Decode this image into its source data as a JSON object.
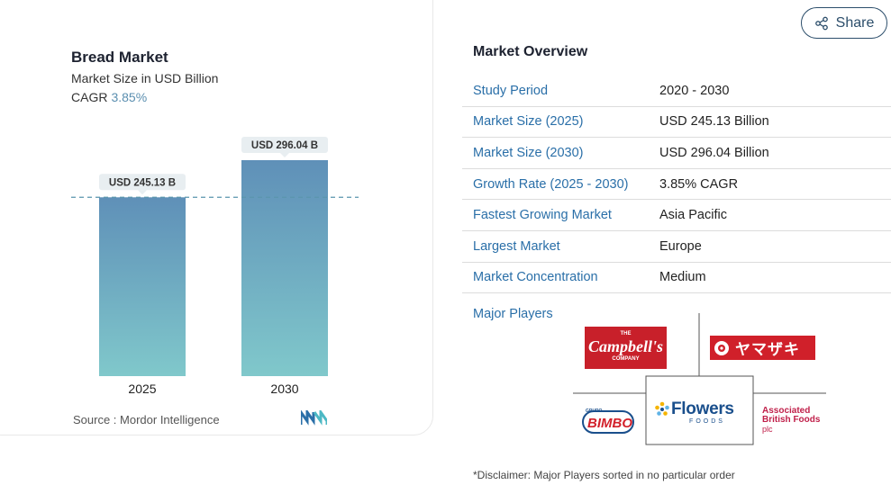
{
  "chart": {
    "title": "Bread Market",
    "subtitle": "Market Size in USD Billion",
    "cagr_label": "CAGR",
    "cagr_value": "3.85%",
    "source": "Source :  Mordor Intelligence"
  },
  "chart_data": {
    "type": "bar",
    "categories": [
      "2025",
      "2030"
    ],
    "values": [
      245.13,
      296.04
    ],
    "data_labels": [
      "USD 245.13 B",
      "USD 296.04 B"
    ],
    "title": "Bread Market",
    "ylabel": "Market Size in USD Billion",
    "reference_line": 245.13,
    "colors": {
      "bar_top": "#5f90b8",
      "bar_bottom": "#80c8cb",
      "label_bg": "#e8eef1",
      "dashed": "#5a95ad"
    }
  },
  "share": {
    "label": "Share",
    "icon": "share-icon"
  },
  "overview": {
    "title": "Market Overview",
    "rows": [
      {
        "key": "Study Period",
        "value": "2020 - 2030"
      },
      {
        "key": "Market Size (2025)",
        "value": "USD 245.13 Billion"
      },
      {
        "key": "Market Size (2030)",
        "value": "USD 296.04 Billion"
      },
      {
        "key": "Growth Rate (2025 - 2030)",
        "value": "3.85% CAGR"
      },
      {
        "key": "Fastest Growing Market",
        "value": "Asia Pacific"
      },
      {
        "key": "Largest Market",
        "value": "Europe"
      },
      {
        "key": "Market Concentration",
        "value": "Medium"
      }
    ]
  },
  "players": {
    "title": "Major Players",
    "campbells": {
      "top": "THE",
      "name": "Campbell's",
      "bottom": "COMPANY"
    },
    "yamazaki": {
      "name": "ヤマザキ"
    },
    "bimbo": {
      "top": "GRUPO",
      "name": "BIMBO"
    },
    "flowers": {
      "name": "Flowers",
      "sub": "FOODS"
    },
    "abf": {
      "line1": "Associated",
      "line2": "British Foods",
      "line3": "plc"
    }
  },
  "disclaimer": "*Disclaimer: Major Players sorted in no particular order",
  "colors": {
    "link": "#2a6fa8",
    "campbells_red": "#c8202a",
    "yamazaki_red": "#d0202a",
    "flowers_blue": "#1a4f8c",
    "abf_red": "#c0204a"
  }
}
